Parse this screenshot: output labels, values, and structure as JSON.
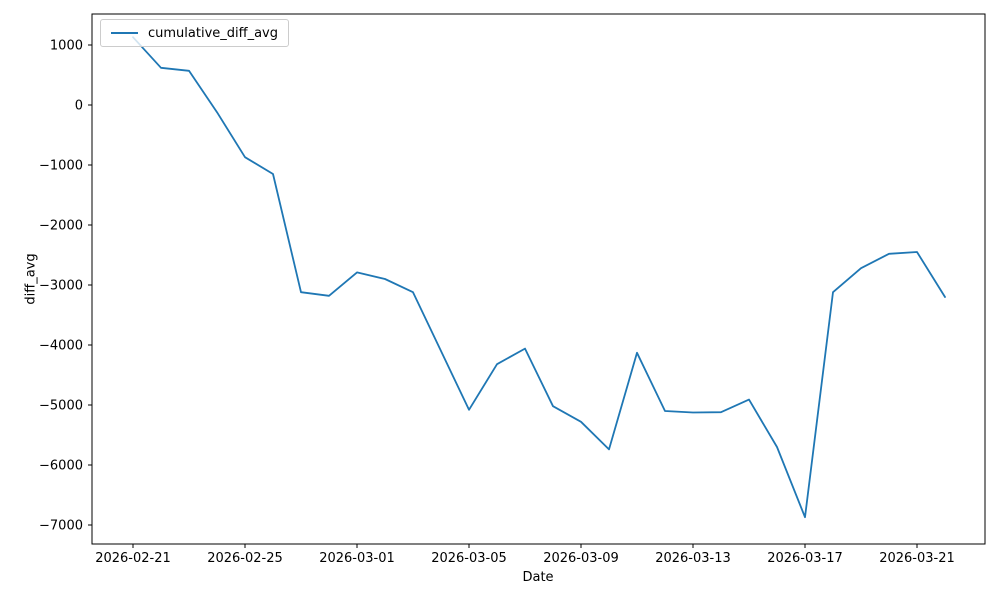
{
  "chart_data": {
    "type": "line",
    "xlabel": "Date",
    "ylabel": "diff_avg",
    "grid": false,
    "legend_position": "upper-left",
    "line_color": "#1f77b4",
    "x": [
      "2026-02-21",
      "2026-02-22",
      "2026-02-23",
      "2026-02-24",
      "2026-02-25",
      "2026-02-26",
      "2026-02-27",
      "2026-02-28",
      "2026-03-01",
      "2026-03-02",
      "2026-03-03",
      "2026-03-04",
      "2026-03-05",
      "2026-03-06",
      "2026-03-07",
      "2026-03-08",
      "2026-03-09",
      "2026-03-10",
      "2026-03-11",
      "2026-03-12",
      "2026-03-13",
      "2026-03-14",
      "2026-03-15",
      "2026-03-16",
      "2026-03-17",
      "2026-03-18",
      "2026-03-19",
      "2026-03-20",
      "2026-03-21",
      "2026-03-22"
    ],
    "series": [
      {
        "name": "cumulative_diff_avg",
        "values": [
          1130,
          620,
          570,
          -120,
          -870,
          -1150,
          -3120,
          -3180,
          -2790,
          -2900,
          -3120,
          -4100,
          -5080,
          -4320,
          -4060,
          -5020,
          -5280,
          -5740,
          -4130,
          -5100,
          -5125,
          -5120,
          -4910,
          -5700,
          -6870,
          -3120,
          -2720,
          -2480,
          -2450,
          -3200
        ]
      }
    ],
    "x_tick_labels": [
      "2026-02-21",
      "2026-02-25",
      "2026-03-01",
      "2026-03-05",
      "2026-03-09",
      "2026-03-13",
      "2026-03-17",
      "2026-03-21"
    ],
    "x_tick_day_indices": [
      0,
      4,
      8,
      12,
      16,
      20,
      24,
      28
    ],
    "y_ticks": [
      1000,
      0,
      -1000,
      -2000,
      -3000,
      -4000,
      -5000,
      -6000,
      -7000
    ],
    "y_tick_labels": [
      "1000",
      "0",
      "−1000",
      "−2000",
      "−3000",
      "−4000",
      "−5000",
      "−6000",
      "−7000"
    ],
    "ylim": [
      -7270,
      1530
    ]
  }
}
